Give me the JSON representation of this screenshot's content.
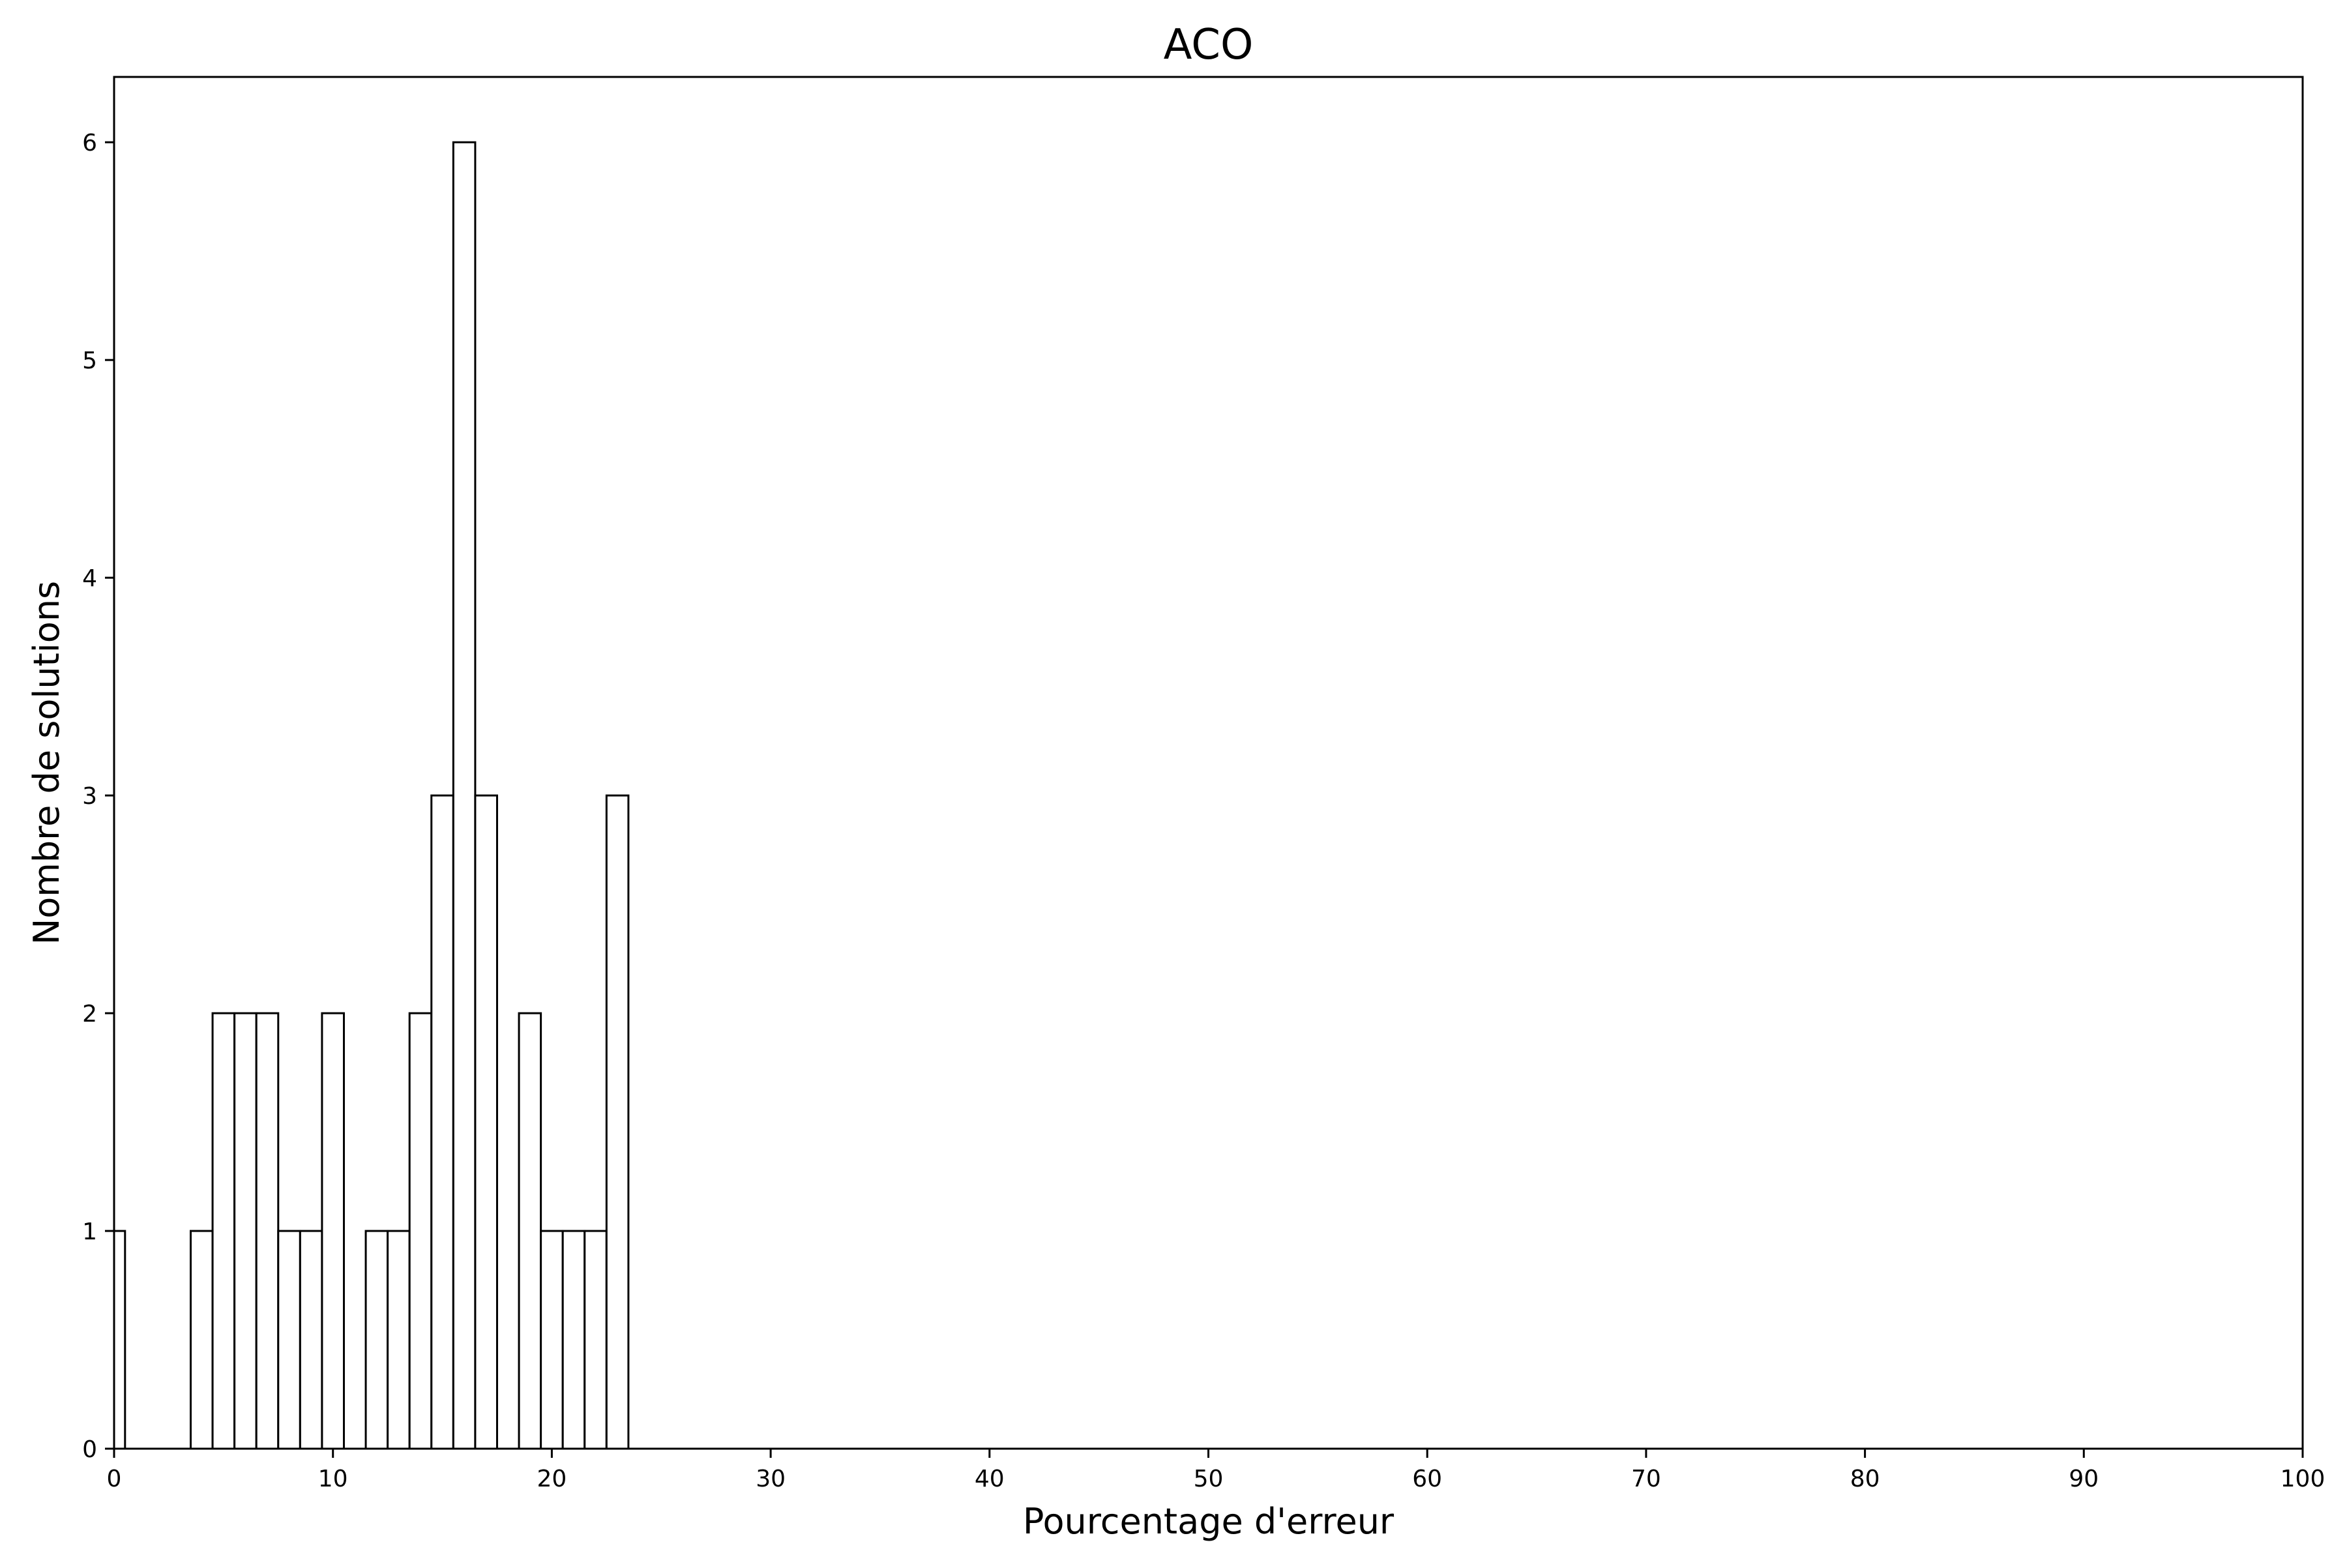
{
  "chart_data": {
    "type": "bar",
    "title": "ACO",
    "xlabel": "Pourcentage d'erreur",
    "ylabel": "Nombre de solutions",
    "xlim": [
      0,
      100
    ],
    "ylim": [
      0,
      6.3
    ],
    "xticks": [
      0,
      10,
      20,
      30,
      40,
      50,
      60,
      70,
      80,
      90,
      100
    ],
    "yticks": [
      0,
      1,
      2,
      3,
      4,
      5,
      6
    ],
    "grid": false,
    "bin_width": 1,
    "bars": [
      {
        "x0": -0.5,
        "x1": 0.5,
        "value": 1
      },
      {
        "x0": 3.5,
        "x1": 4.5,
        "value": 1
      },
      {
        "x0": 4.5,
        "x1": 5.5,
        "value": 2
      },
      {
        "x0": 5.5,
        "x1": 6.5,
        "value": 2
      },
      {
        "x0": 6.5,
        "x1": 7.5,
        "value": 2
      },
      {
        "x0": 7.5,
        "x1": 8.5,
        "value": 1
      },
      {
        "x0": 8.5,
        "x1": 9.5,
        "value": 1
      },
      {
        "x0": 9.5,
        "x1": 10.5,
        "value": 2
      },
      {
        "x0": 11.5,
        "x1": 12.5,
        "value": 1
      },
      {
        "x0": 12.5,
        "x1": 13.5,
        "value": 1
      },
      {
        "x0": 13.5,
        "x1": 14.5,
        "value": 2
      },
      {
        "x0": 14.5,
        "x1": 15.5,
        "value": 3
      },
      {
        "x0": 15.5,
        "x1": 16.5,
        "value": 6
      },
      {
        "x0": 16.5,
        "x1": 17.5,
        "value": 3
      },
      {
        "x0": 18.5,
        "x1": 19.5,
        "value": 2
      },
      {
        "x0": 19.5,
        "x1": 20.5,
        "value": 1
      },
      {
        "x0": 20.5,
        "x1": 21.5,
        "value": 1
      },
      {
        "x0": 21.5,
        "x1": 22.5,
        "value": 1
      },
      {
        "x0": 22.5,
        "x1": 23.5,
        "value": 3
      }
    ],
    "colors": {
      "bar_fill": "#ffffff",
      "bar_edge": "#000000",
      "axes": "#000000"
    }
  }
}
